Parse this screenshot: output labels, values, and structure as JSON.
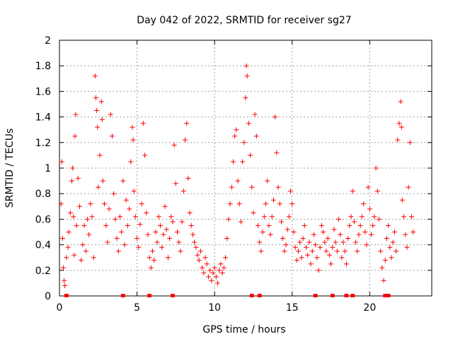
{
  "chart_data": {
    "type": "scatter",
    "title": "Day 042 of 2022, SRMTID for receiver sg27",
    "xlabel": "GPS time / hours",
    "ylabel": "SRMTID / TECUs",
    "xlim": [
      0,
      24
    ],
    "ylim": [
      0,
      2
    ],
    "grid": true,
    "x_ticks": [
      0,
      5,
      10,
      15,
      20
    ],
    "x_tick_labels": [
      "0",
      "5",
      "10",
      "15",
      "20"
    ],
    "y_ticks": [
      0,
      0.2,
      0.4,
      0.6,
      0.8,
      1,
      1.2,
      1.4,
      1.6,
      1.8,
      2
    ],
    "y_tick_labels": [
      "0",
      "0.2",
      "0.4",
      "0.6",
      "0.8",
      "1",
      "1.2",
      "1.4",
      "1.6",
      "1.8",
      "2"
    ],
    "marker": "plus",
    "marker_color": "#ff0000",
    "outlier_marker": "square",
    "outlier_y": 0,
    "outlier_x": [
      0.45,
      4.1,
      5.8,
      7.3,
      12.4,
      12.9,
      16.5,
      17.6,
      18.5,
      18.9,
      21.0,
      21.2
    ],
    "series": [
      {
        "name": "SRMTID",
        "points": [
          [
            0.1,
            0.72
          ],
          [
            0.15,
            1.05
          ],
          [
            0.2,
            0.45
          ],
          [
            0.25,
            0.22
          ],
          [
            0.3,
            0.12
          ],
          [
            0.35,
            0.08
          ],
          [
            0.45,
            0.3
          ],
          [
            0.55,
            0.38
          ],
          [
            0.6,
            0.5
          ],
          [
            0.7,
            0.65
          ],
          [
            0.8,
            0.9
          ],
          [
            0.85,
            1.0
          ],
          [
            0.9,
            0.62
          ],
          [
            0.95,
            0.32
          ],
          [
            1.0,
            1.25
          ],
          [
            1.05,
            1.42
          ],
          [
            1.1,
            0.55
          ],
          [
            1.2,
            0.92
          ],
          [
            1.3,
            0.7
          ],
          [
            1.4,
            0.28
          ],
          [
            1.5,
            0.4
          ],
          [
            1.6,
            0.55
          ],
          [
            1.7,
            0.35
          ],
          [
            1.8,
            0.6
          ],
          [
            1.9,
            0.48
          ],
          [
            2.0,
            0.72
          ],
          [
            2.1,
            0.62
          ],
          [
            2.2,
            0.3
          ],
          [
            2.3,
            1.72
          ],
          [
            2.35,
            1.55
          ],
          [
            2.4,
            1.45
          ],
          [
            2.45,
            1.32
          ],
          [
            2.5,
            0.85
          ],
          [
            2.6,
            1.1
          ],
          [
            2.7,
            1.52
          ],
          [
            2.75,
            1.38
          ],
          [
            2.8,
            0.9
          ],
          [
            2.9,
            0.72
          ],
          [
            3.0,
            0.55
          ],
          [
            3.1,
            0.42
          ],
          [
            3.2,
            0.68
          ],
          [
            3.3,
            1.42
          ],
          [
            3.4,
            1.25
          ],
          [
            3.5,
            0.8
          ],
          [
            3.6,
            0.6
          ],
          [
            3.7,
            0.45
          ],
          [
            3.8,
            0.35
          ],
          [
            3.9,
            0.62
          ],
          [
            4.0,
            0.5
          ],
          [
            4.1,
            0.9
          ],
          [
            4.2,
            0.4
          ],
          [
            4.3,
            0.75
          ],
          [
            4.4,
            0.55
          ],
          [
            4.5,
            0.68
          ],
          [
            4.6,
            1.05
          ],
          [
            4.7,
            1.32
          ],
          [
            4.75,
            1.22
          ],
          [
            4.8,
            0.82
          ],
          [
            4.9,
            0.62
          ],
          [
            5.0,
            0.45
          ],
          [
            5.1,
            0.38
          ],
          [
            5.2,
            0.56
          ],
          [
            5.3,
            0.72
          ],
          [
            5.4,
            1.35
          ],
          [
            5.5,
            1.1
          ],
          [
            5.6,
            0.65
          ],
          [
            5.7,
            0.48
          ],
          [
            5.8,
            0.3
          ],
          [
            5.9,
            0.22
          ],
          [
            6.0,
            0.35
          ],
          [
            6.1,
            0.28
          ],
          [
            6.2,
            0.5
          ],
          [
            6.3,
            0.42
          ],
          [
            6.4,
            0.62
          ],
          [
            6.5,
            0.55
          ],
          [
            6.6,
            0.38
          ],
          [
            6.7,
            0.48
          ],
          [
            6.8,
            0.7
          ],
          [
            6.9,
            0.52
          ],
          [
            7.0,
            0.3
          ],
          [
            7.1,
            0.45
          ],
          [
            7.2,
            0.62
          ],
          [
            7.3,
            0.58
          ],
          [
            7.4,
            1.18
          ],
          [
            7.5,
            0.88
          ],
          [
            7.6,
            0.5
          ],
          [
            7.7,
            0.42
          ],
          [
            7.8,
            0.35
          ],
          [
            7.9,
            0.58
          ],
          [
            8.0,
            0.82
          ],
          [
            8.1,
            1.22
          ],
          [
            8.2,
            1.35
          ],
          [
            8.3,
            0.92
          ],
          [
            8.4,
            0.65
          ],
          [
            8.5,
            0.55
          ],
          [
            8.6,
            0.48
          ],
          [
            8.7,
            0.42
          ],
          [
            8.8,
            0.38
          ],
          [
            8.9,
            0.32
          ],
          [
            9.0,
            0.28
          ],
          [
            9.1,
            0.35
          ],
          [
            9.2,
            0.22
          ],
          [
            9.3,
            0.18
          ],
          [
            9.4,
            0.3
          ],
          [
            9.5,
            0.25
          ],
          [
            9.6,
            0.15
          ],
          [
            9.7,
            0.2
          ],
          [
            9.8,
            0.12
          ],
          [
            9.9,
            0.18
          ],
          [
            10.0,
            0.22
          ],
          [
            10.1,
            0.15
          ],
          [
            10.2,
            0.1
          ],
          [
            10.3,
            0.2
          ],
          [
            10.4,
            0.25
          ],
          [
            10.5,
            0.18
          ],
          [
            10.6,
            0.22
          ],
          [
            10.7,
            0.3
          ],
          [
            10.8,
            0.45
          ],
          [
            10.9,
            0.6
          ],
          [
            11.0,
            0.72
          ],
          [
            11.1,
            0.85
          ],
          [
            11.2,
            1.05
          ],
          [
            11.3,
            1.25
          ],
          [
            11.4,
            1.3
          ],
          [
            11.5,
            0.9
          ],
          [
            11.6,
            0.72
          ],
          [
            11.7,
            0.58
          ],
          [
            11.8,
            1.05
          ],
          [
            11.9,
            1.2
          ],
          [
            12.0,
            1.55
          ],
          [
            12.05,
            1.8
          ],
          [
            12.1,
            1.72
          ],
          [
            12.2,
            1.35
          ],
          [
            12.3,
            1.1
          ],
          [
            12.4,
            0.85
          ],
          [
            12.5,
            0.65
          ],
          [
            12.6,
            1.42
          ],
          [
            12.7,
            1.25
          ],
          [
            12.8,
            0.55
          ],
          [
            12.9,
            0.42
          ],
          [
            13.0,
            0.35
          ],
          [
            13.1,
            0.5
          ],
          [
            13.2,
            0.62
          ],
          [
            13.3,
            0.72
          ],
          [
            13.4,
            0.9
          ],
          [
            13.5,
            0.55
          ],
          [
            13.6,
            0.48
          ],
          [
            13.7,
            0.62
          ],
          [
            13.8,
            0.75
          ],
          [
            13.9,
            1.4
          ],
          [
            14.0,
            1.12
          ],
          [
            14.1,
            0.85
          ],
          [
            14.2,
            0.72
          ],
          [
            14.3,
            0.58
          ],
          [
            14.4,
            0.45
          ],
          [
            14.5,
            0.35
          ],
          [
            14.6,
            0.4
          ],
          [
            14.7,
            0.52
          ],
          [
            14.8,
            0.62
          ],
          [
            14.9,
            0.82
          ],
          [
            15.0,
            0.72
          ],
          [
            15.1,
            0.5
          ],
          [
            15.2,
            0.38
          ],
          [
            15.3,
            0.28
          ],
          [
            15.4,
            0.35
          ],
          [
            15.5,
            0.42
          ],
          [
            15.6,
            0.3
          ],
          [
            15.7,
            0.45
          ],
          [
            15.8,
            0.55
          ],
          [
            15.9,
            0.38
          ],
          [
            16.0,
            0.32
          ],
          [
            16.1,
            0.42
          ],
          [
            16.2,
            0.25
          ],
          [
            16.3,
            0.35
          ],
          [
            16.4,
            0.48
          ],
          [
            16.5,
            0.4
          ],
          [
            16.6,
            0.3
          ],
          [
            16.7,
            0.2
          ],
          [
            16.8,
            0.38
          ],
          [
            16.9,
            0.55
          ],
          [
            17.0,
            0.5
          ],
          [
            17.1,
            0.42
          ],
          [
            17.2,
            0.35
          ],
          [
            17.3,
            0.45
          ],
          [
            17.4,
            0.32
          ],
          [
            17.5,
            0.25
          ],
          [
            17.6,
            0.38
          ],
          [
            17.7,
            0.52
          ],
          [
            17.8,
            0.42
          ],
          [
            17.9,
            0.35
          ],
          [
            18.0,
            0.6
          ],
          [
            18.1,
            0.48
          ],
          [
            18.2,
            0.3
          ],
          [
            18.3,
            0.42
          ],
          [
            18.4,
            0.35
          ],
          [
            18.5,
            0.25
          ],
          [
            18.6,
            0.45
          ],
          [
            18.7,
            0.55
          ],
          [
            18.8,
            0.62
          ],
          [
            18.9,
            0.82
          ],
          [
            19.0,
            0.58
          ],
          [
            19.1,
            0.42
          ],
          [
            19.2,
            0.35
          ],
          [
            19.3,
            0.48
          ],
          [
            19.4,
            0.55
          ],
          [
            19.5,
            0.62
          ],
          [
            19.6,
            0.72
          ],
          [
            19.7,
            0.5
          ],
          [
            19.8,
            0.4
          ],
          [
            19.9,
            0.85
          ],
          [
            20.0,
            0.68
          ],
          [
            20.1,
            0.48
          ],
          [
            20.2,
            0.55
          ],
          [
            20.3,
            0.62
          ],
          [
            20.4,
            1.0
          ],
          [
            20.5,
            0.82
          ],
          [
            20.6,
            0.6
          ],
          [
            20.7,
            0.35
          ],
          [
            20.8,
            0.22
          ],
          [
            20.9,
            0.12
          ],
          [
            21.0,
            0.28
          ],
          [
            21.1,
            0.45
          ],
          [
            21.2,
            0.55
          ],
          [
            21.3,
            0.38
          ],
          [
            21.4,
            0.3
          ],
          [
            21.5,
            0.42
          ],
          [
            21.6,
            0.5
          ],
          [
            21.7,
            0.35
          ],
          [
            21.8,
            1.22
          ],
          [
            21.9,
            1.35
          ],
          [
            22.0,
            1.52
          ],
          [
            22.05,
            1.32
          ],
          [
            22.1,
            0.75
          ],
          [
            22.2,
            0.62
          ],
          [
            22.3,
            0.48
          ],
          [
            22.4,
            0.38
          ],
          [
            22.5,
            0.85
          ],
          [
            22.6,
            1.2
          ],
          [
            22.7,
            0.62
          ],
          [
            22.8,
            0.5
          ]
        ]
      }
    ]
  }
}
